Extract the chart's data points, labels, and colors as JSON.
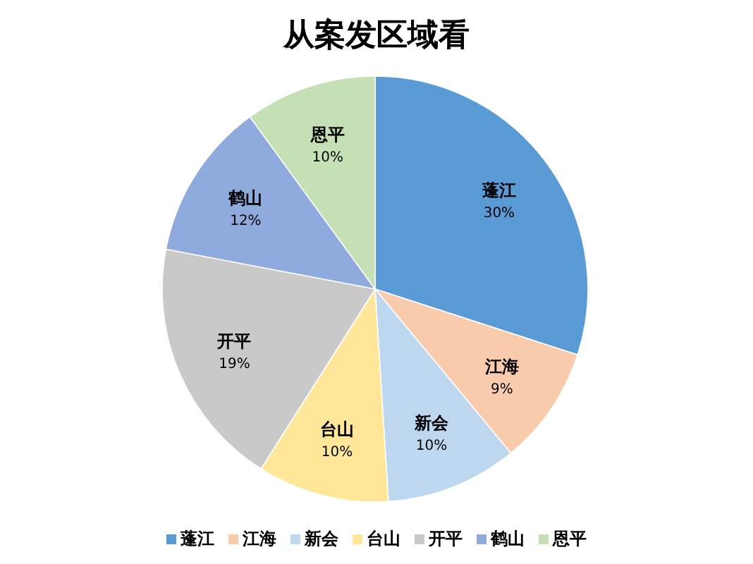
{
  "chart_data": {
    "type": "pie",
    "title": "从案发区域看",
    "categories": [
      "蓬江",
      "江海",
      "新会",
      "台山",
      "开平",
      "鹤山",
      "恩平"
    ],
    "values": [
      30,
      9,
      10,
      10,
      19,
      12,
      10
    ],
    "value_labels": [
      "30%",
      "9%",
      "10%",
      "10%",
      "19%",
      "12%",
      "10%"
    ],
    "colors": [
      "#5b9bd5",
      "#f8cbad",
      "#bdd7ee",
      "#ffe699",
      "#c9c9c9",
      "#8faadc",
      "#c5e0b4"
    ],
    "legend": "bottom"
  }
}
